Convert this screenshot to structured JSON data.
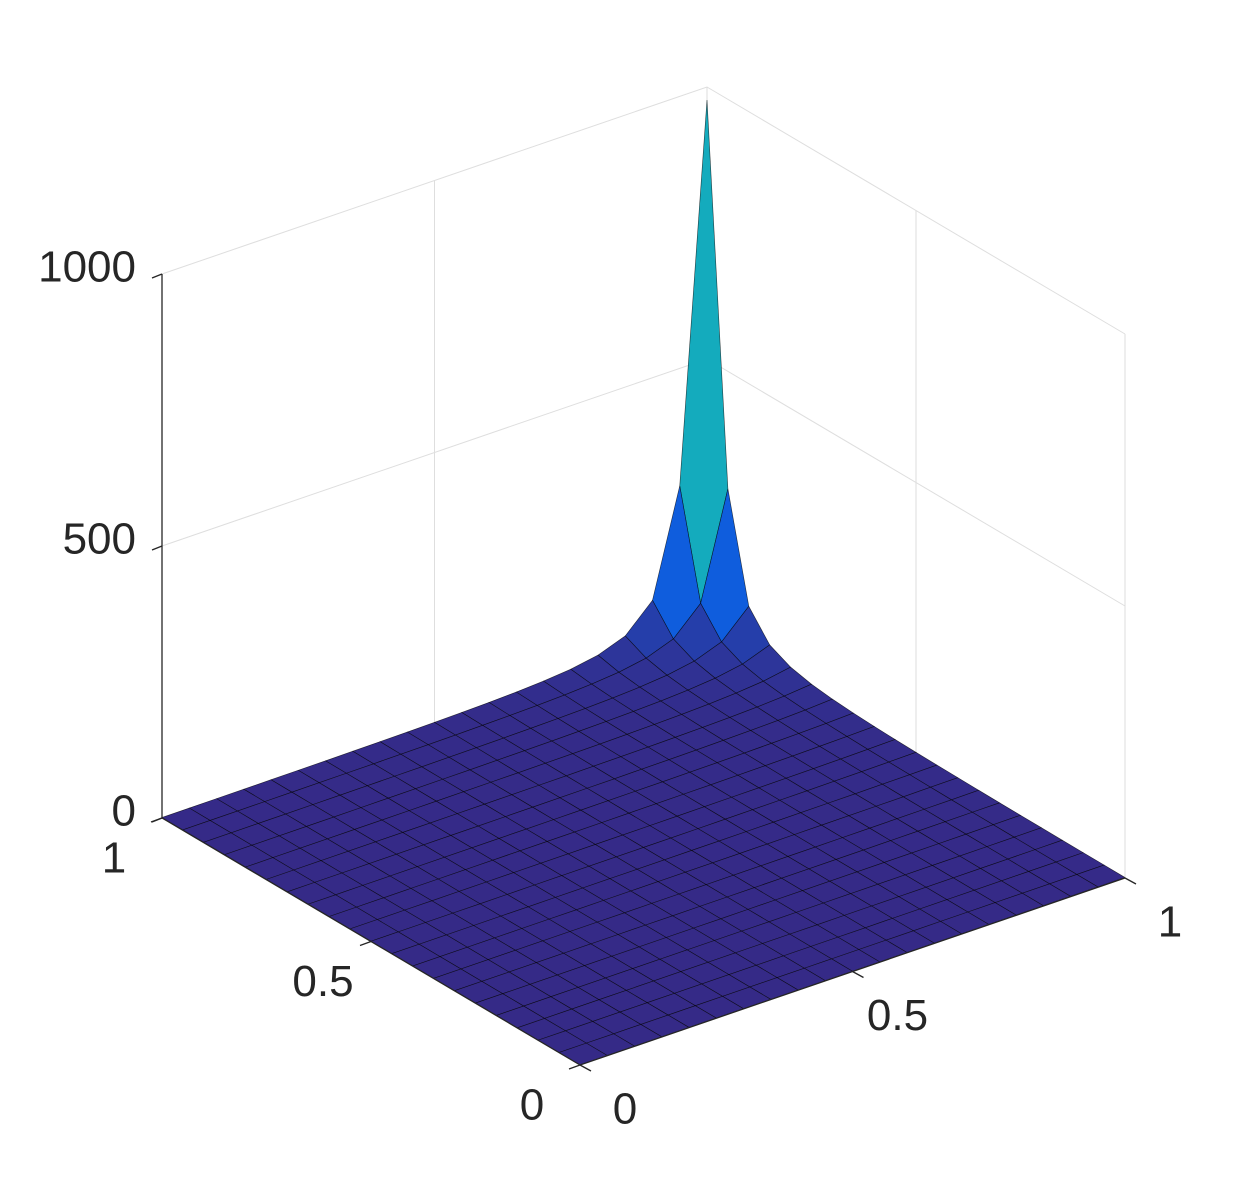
{
  "chart_data": {
    "type": "surface",
    "x": [
      0,
      0.05,
      0.1,
      0.15,
      0.2,
      0.25,
      0.3,
      0.35,
      0.4,
      0.45,
      0.5,
      0.55,
      0.6,
      0.65,
      0.7,
      0.75,
      0.8,
      0.85,
      0.9,
      0.95,
      1
    ],
    "y": [
      0,
      0.05,
      0.1,
      0.15,
      0.2,
      0.25,
      0.3,
      0.35,
      0.4,
      0.45,
      0.5,
      0.55,
      0.6,
      0.65,
      0.7,
      0.75,
      0.8,
      0.85,
      0.9,
      0.95,
      1
    ],
    "z": [
      [
        0.25,
        0.26,
        0.28,
        0.29,
        0.31,
        0.33,
        0.35,
        0.37,
        0.39,
        0.42,
        0.44,
        0.48,
        0.51,
        0.55,
        0.59,
        0.64,
        0.69,
        0.76,
        0.83,
        0.91,
        1
      ],
      [
        0.26,
        0.28,
        0.29,
        0.31,
        0.33,
        0.35,
        0.37,
        0.39,
        0.42,
        0.44,
        0.48,
        0.51,
        0.55,
        0.59,
        0.64,
        0.69,
        0.76,
        0.83,
        0.91,
        1,
        1.1
      ],
      [
        0.28,
        0.29,
        0.31,
        0.33,
        0.35,
        0.37,
        0.39,
        0.42,
        0.44,
        0.48,
        0.51,
        0.55,
        0.59,
        0.64,
        0.69,
        0.76,
        0.83,
        0.91,
        1,
        1.1,
        1.2
      ],
      [
        0.29,
        0.31,
        0.33,
        0.35,
        0.37,
        0.39,
        0.42,
        0.44,
        0.48,
        0.51,
        0.55,
        0.59,
        0.64,
        0.69,
        0.76,
        0.83,
        0.91,
        1,
        1.1,
        1.2,
        1.4
      ],
      [
        0.31,
        0.33,
        0.35,
        0.37,
        0.39,
        0.42,
        0.44,
        0.48,
        0.51,
        0.55,
        0.59,
        0.64,
        0.69,
        0.76,
        0.83,
        0.91,
        1,
        1.1,
        1.2,
        1.4,
        1.6
      ],
      [
        0.33,
        0.35,
        0.37,
        0.39,
        0.42,
        0.44,
        0.48,
        0.51,
        0.55,
        0.59,
        0.64,
        0.69,
        0.76,
        0.83,
        0.91,
        1,
        1.1,
        1.2,
        1.4,
        1.6,
        1.8
      ],
      [
        0.35,
        0.37,
        0.39,
        0.42,
        0.44,
        0.48,
        0.51,
        0.55,
        0.59,
        0.64,
        0.69,
        0.76,
        0.83,
        0.91,
        1,
        1.1,
        1.2,
        1.4,
        1.6,
        1.8,
        2
      ],
      [
        0.37,
        0.39,
        0.42,
        0.44,
        0.48,
        0.51,
        0.55,
        0.59,
        0.64,
        0.69,
        0.76,
        0.83,
        0.91,
        1,
        1.1,
        1.2,
        1.4,
        1.6,
        1.8,
        2,
        2.4
      ],
      [
        0.39,
        0.42,
        0.44,
        0.48,
        0.51,
        0.55,
        0.59,
        0.64,
        0.69,
        0.76,
        0.83,
        0.91,
        1,
        1.1,
        1.2,
        1.4,
        1.6,
        1.8,
        2,
        2.4,
        2.8
      ],
      [
        0.42,
        0.44,
        0.48,
        0.51,
        0.55,
        0.59,
        0.64,
        0.69,
        0.76,
        0.83,
        0.91,
        1,
        1.1,
        1.2,
        1.4,
        1.6,
        1.8,
        2,
        2.4,
        2.8,
        3.3
      ],
      [
        0.44,
        0.48,
        0.51,
        0.55,
        0.59,
        0.64,
        0.69,
        0.76,
        0.83,
        0.91,
        1,
        1.1,
        1.2,
        1.4,
        1.6,
        1.8,
        2,
        2.4,
        2.8,
        3.3,
        4
      ],
      [
        0.48,
        0.51,
        0.55,
        0.59,
        0.64,
        0.69,
        0.76,
        0.83,
        0.91,
        1,
        1.1,
        1.2,
        1.4,
        1.6,
        1.8,
        2,
        2.4,
        2.8,
        3.3,
        4,
        4.9
      ],
      [
        0.51,
        0.55,
        0.59,
        0.64,
        0.69,
        0.76,
        0.83,
        0.91,
        1,
        1.1,
        1.2,
        1.4,
        1.6,
        1.8,
        2,
        2.4,
        2.8,
        3.3,
        4,
        4.9,
        6.2
      ],
      [
        0.55,
        0.59,
        0.64,
        0.69,
        0.76,
        0.83,
        0.91,
        1,
        1.1,
        1.2,
        1.4,
        1.6,
        1.8,
        2,
        2.4,
        2.8,
        3.3,
        4,
        4.9,
        6.2,
        8.1
      ],
      [
        0.59,
        0.64,
        0.69,
        0.76,
        0.83,
        0.91,
        1,
        1.1,
        1.2,
        1.4,
        1.6,
        1.8,
        2,
        2.4,
        2.8,
        3.3,
        4,
        4.9,
        6.2,
        8.1,
        11
      ],
      [
        0.64,
        0.69,
        0.76,
        0.83,
        0.91,
        1,
        1.1,
        1.2,
        1.4,
        1.6,
        1.8,
        2,
        2.4,
        2.8,
        3.3,
        4,
        4.9,
        6.2,
        8.1,
        11,
        15.7
      ],
      [
        0.69,
        0.76,
        0.83,
        0.91,
        1,
        1.1,
        1.2,
        1.4,
        1.6,
        1.8,
        2,
        2.4,
        2.8,
        3.3,
        4,
        4.9,
        6.2,
        8.1,
        11,
        15.7,
        24.4
      ],
      [
        0.76,
        0.83,
        0.91,
        1,
        1.1,
        1.2,
        1.4,
        1.6,
        1.8,
        2,
        2.4,
        2.8,
        3.3,
        4,
        4.9,
        6.2,
        8.1,
        11,
        15.7,
        24.4,
        42.5
      ],
      [
        0.83,
        0.91,
        1,
        1.1,
        1.2,
        1.4,
        1.6,
        1.8,
        2,
        2.4,
        2.8,
        3.3,
        4,
        4.9,
        6.2,
        8.1,
        11,
        15.7,
        24.4,
        42.5,
        90.7
      ],
      [
        0.91,
        1,
        1.1,
        1.2,
        1.4,
        1.6,
        1.8,
        2,
        2.4,
        2.8,
        3.3,
        4,
        4.9,
        6.2,
        8.1,
        11,
        15.7,
        24.4,
        42.5,
        90.7,
        284
      ],
      [
        1,
        1.1,
        1.2,
        1.4,
        1.6,
        1.8,
        2,
        2.4,
        2.8,
        3.3,
        4,
        4.9,
        6.2,
        8.1,
        11,
        15.7,
        24.4,
        42.5,
        90.7,
        284,
        976
      ]
    ],
    "xlim": [
      0,
      1
    ],
    "ylim": [
      0,
      1
    ],
    "zlim": [
      0,
      1000
    ],
    "xticks": [
      0,
      0.5,
      1
    ],
    "yticks": [
      0,
      0.5,
      1
    ],
    "zticks": [
      0,
      500,
      1000
    ],
    "grid": true,
    "edge_color": "#000000",
    "colormap": [
      "#352a87",
      "#0f5cdd",
      "#1481d6",
      "#06a4ca",
      "#2eb7a4",
      "#87bf77",
      "#d1bb59",
      "#fec832",
      "#f9fb0e"
    ]
  }
}
